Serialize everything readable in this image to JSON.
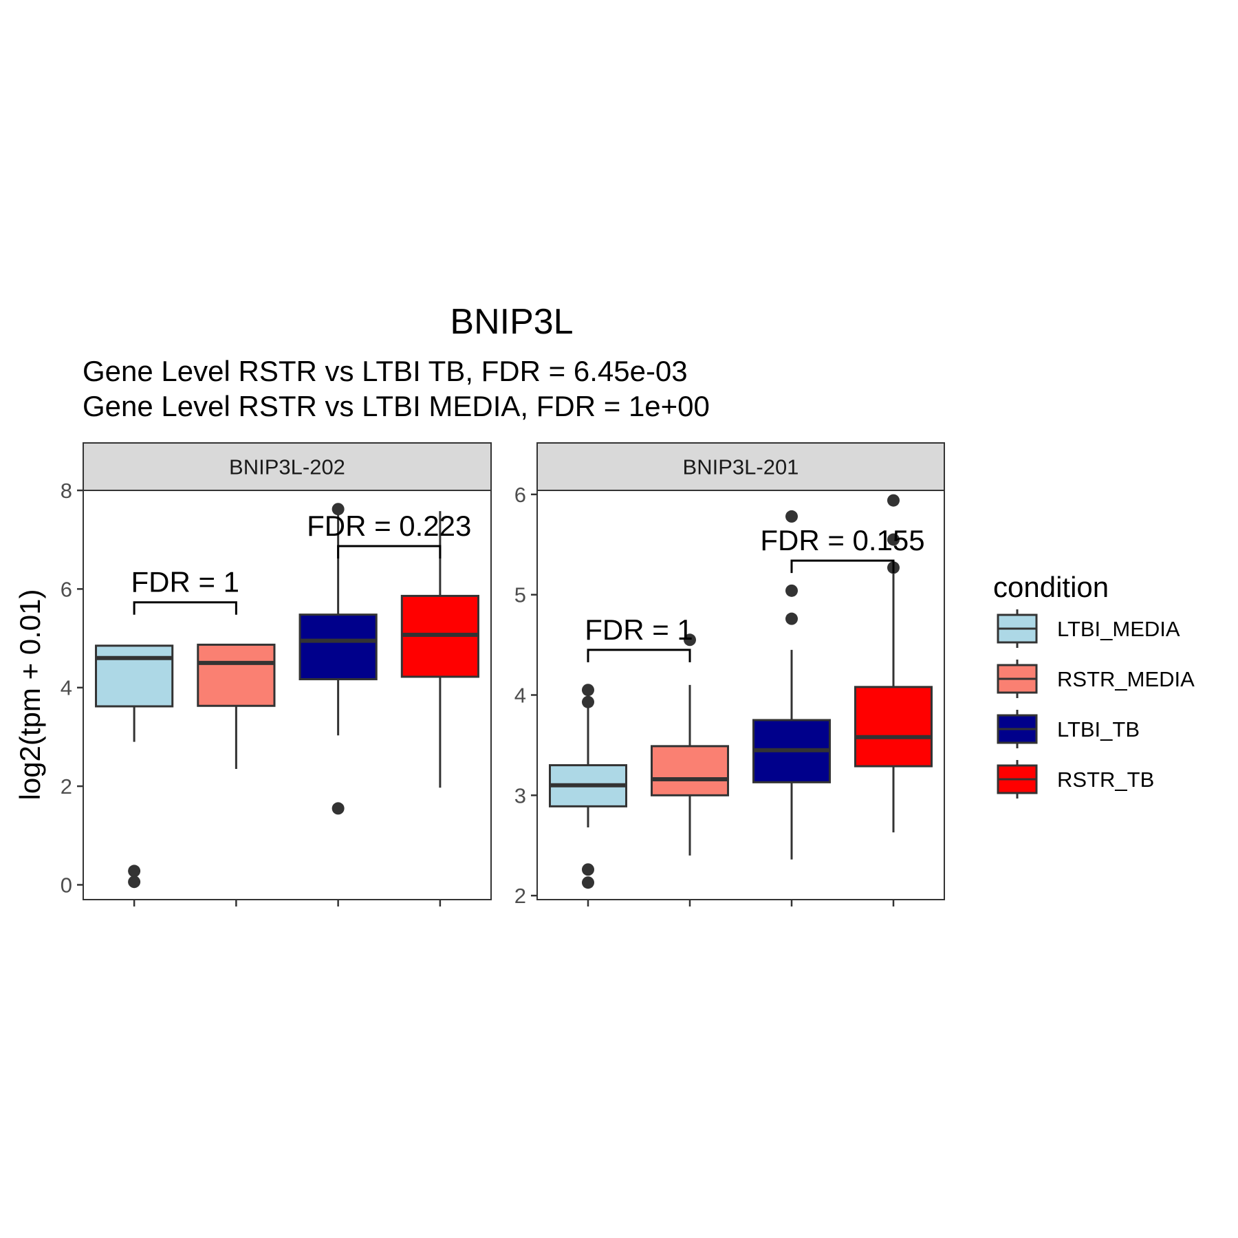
{
  "chart_data": {
    "type": "boxplot",
    "title": "BNIP3L",
    "subtitle_lines": [
      "Gene Level RSTR vs LTBI TB, FDR =  6.45e-03",
      "Gene Level RSTR vs LTBI MEDIA, FDR =  1e+00"
    ],
    "ylabel": "log2(tpm + 0.01)",
    "xlabel": "",
    "grid": false,
    "legend": {
      "title": "condition",
      "position": "right",
      "entries": [
        {
          "name": "LTBI_MEDIA",
          "color": "#ADD8E6"
        },
        {
          "name": "RSTR_MEDIA",
          "color": "#FA8072"
        },
        {
          "name": "LTBI_TB",
          "color": "#00008B"
        },
        {
          "name": "RSTR_TB",
          "color": "#FF0000"
        }
      ]
    },
    "categories": [
      "LTBI_MEDIA",
      "RSTR_MEDIA",
      "LTBI_TB",
      "RSTR_TB"
    ],
    "panels": [
      {
        "strip": "BNIP3L-202",
        "ylim": [
          -0.3,
          8.0
        ],
        "yticks": [
          "0",
          "2",
          "4",
          "6",
          "8"
        ],
        "ytick_values": [
          0,
          2,
          4,
          6,
          8
        ],
        "boxes": [
          {
            "condition": "LTBI_MEDIA",
            "min": 2.9,
            "q1": 3.62,
            "median": 4.6,
            "q3": 4.85,
            "max": 4.85,
            "outliers": [
              0.28,
              0.06
            ]
          },
          {
            "condition": "RSTR_MEDIA",
            "min": 2.35,
            "q1": 3.63,
            "median": 4.5,
            "q3": 4.87,
            "max": 4.87,
            "outliers": []
          },
          {
            "condition": "LTBI_TB",
            "min": 3.03,
            "q1": 4.17,
            "median": 4.95,
            "q3": 5.48,
            "max": 7.5,
            "outliers": [
              7.62,
              1.55
            ]
          },
          {
            "condition": "RSTR_TB",
            "min": 1.97,
            "q1": 4.22,
            "median": 5.07,
            "q3": 5.86,
            "max": 7.58,
            "outliers": []
          }
        ],
        "comparisons": [
          {
            "from": 0,
            "to": 1,
            "y": 5.73,
            "label": "FDR =  1"
          },
          {
            "from": 2,
            "to": 3,
            "y": 6.87,
            "label": "FDR =  0.223"
          }
        ]
      },
      {
        "strip": "BNIP3L-201",
        "ylim": [
          1.96,
          6.04
        ],
        "yticks": [
          "2",
          "3",
          "4",
          "5",
          "6"
        ],
        "ytick_values": [
          2,
          3,
          4,
          5,
          6
        ],
        "boxes": [
          {
            "condition": "LTBI_MEDIA",
            "min": 2.68,
            "q1": 2.89,
            "median": 3.1,
            "q3": 3.3,
            "max": 3.93,
            "outliers": [
              4.05,
              3.93,
              2.26,
              2.13
            ]
          },
          {
            "condition": "RSTR_MEDIA",
            "min": 2.4,
            "q1": 3.0,
            "median": 3.16,
            "q3": 3.49,
            "max": 4.1,
            "outliers": [
              4.55
            ]
          },
          {
            "condition": "LTBI_TB",
            "min": 2.36,
            "q1": 3.13,
            "median": 3.45,
            "q3": 3.75,
            "max": 4.45,
            "outliers": [
              5.78,
              5.04,
              4.76
            ]
          },
          {
            "condition": "RSTR_TB",
            "min": 2.63,
            "q1": 3.29,
            "median": 3.58,
            "q3": 4.08,
            "max": 5.27,
            "outliers": [
              5.94,
              5.55,
              5.27
            ]
          }
        ],
        "comparisons": [
          {
            "from": 0,
            "to": 1,
            "y": 4.45,
            "label": "FDR =  1"
          },
          {
            "from": 2,
            "to": 3,
            "y": 5.34,
            "label": "FDR =  0.155"
          }
        ]
      }
    ]
  }
}
